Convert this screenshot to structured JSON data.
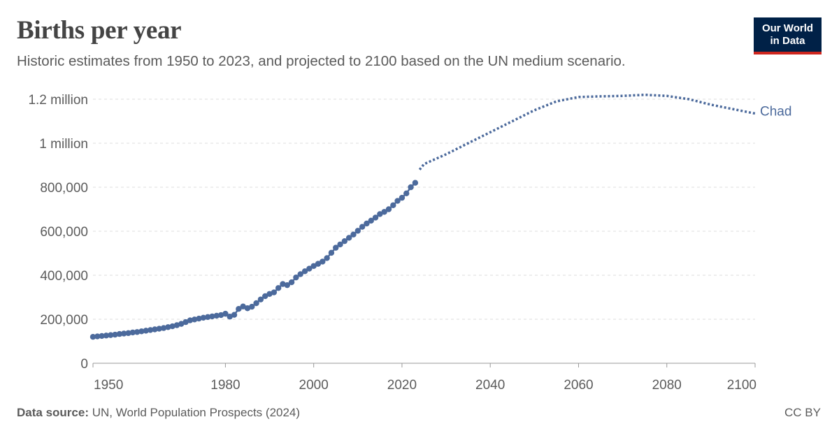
{
  "header": {
    "title": "Births per year",
    "subtitle": "Historic estimates from 1950 to 2023, and projected to 2100 based on the UN medium scenario."
  },
  "logo": {
    "line1": "Our World",
    "line2": "in Data"
  },
  "footer": {
    "source_label": "Data source:",
    "source_text": "UN, World Population Prospects (2024)",
    "license": "CC BY"
  },
  "colors": {
    "series": "#4c6a9c",
    "grid": "#dddddd",
    "axis": "#999999",
    "logo_bg": "#002147",
    "logo_accent": "#ce261e"
  },
  "chart_data": {
    "type": "line",
    "title": "Births per year",
    "xlabel": "",
    "ylabel": "",
    "xlim": [
      1950,
      2100
    ],
    "ylim": [
      0,
      1200000
    ],
    "x_ticks": [
      {
        "value": 1950,
        "label": "1950"
      },
      {
        "value": 1980,
        "label": "1980"
      },
      {
        "value": 2000,
        "label": "2000"
      },
      {
        "value": 2020,
        "label": "2020"
      },
      {
        "value": 2040,
        "label": "2040"
      },
      {
        "value": 2060,
        "label": "2060"
      },
      {
        "value": 2080,
        "label": "2080"
      },
      {
        "value": 2100,
        "label": "2100"
      }
    ],
    "y_ticks": [
      {
        "value": 0,
        "label": "0"
      },
      {
        "value": 200000,
        "label": "200,000"
      },
      {
        "value": 400000,
        "label": "400,000"
      },
      {
        "value": 600000,
        "label": "600,000"
      },
      {
        "value": 800000,
        "label": "800,000"
      },
      {
        "value": 1000000,
        "label": "1 million"
      },
      {
        "value": 1200000,
        "label": "1.2 million"
      }
    ],
    "grid": true,
    "legend": "inline-right",
    "series": [
      {
        "name": "Chad",
        "style": "solid-markers",
        "x": [
          1950,
          1951,
          1952,
          1953,
          1954,
          1955,
          1956,
          1957,
          1958,
          1959,
          1960,
          1961,
          1962,
          1963,
          1964,
          1965,
          1966,
          1967,
          1968,
          1969,
          1970,
          1971,
          1972,
          1973,
          1974,
          1975,
          1976,
          1977,
          1978,
          1979,
          1980,
          1981,
          1982,
          1983,
          1984,
          1985,
          1986,
          1987,
          1988,
          1989,
          1990,
          1991,
          1992,
          1993,
          1994,
          1995,
          1996,
          1997,
          1998,
          1999,
          2000,
          2001,
          2002,
          2003,
          2004,
          2005,
          2006,
          2007,
          2008,
          2009,
          2010,
          2011,
          2012,
          2013,
          2014,
          2015,
          2016,
          2017,
          2018,
          2019,
          2020,
          2021,
          2022,
          2023
        ],
        "values": [
          120000,
          122000,
          124000,
          126000,
          128000,
          130000,
          133000,
          135000,
          137000,
          140000,
          142000,
          145000,
          148000,
          151000,
          154000,
          157000,
          160000,
          164000,
          168000,
          173000,
          179000,
          187000,
          195000,
          199000,
          203000,
          207000,
          210000,
          213000,
          216000,
          219000,
          225000,
          212000,
          220000,
          247000,
          258000,
          250000,
          257000,
          273000,
          290000,
          305000,
          315000,
          322000,
          342000,
          360000,
          355000,
          368000,
          390000,
          405000,
          418000,
          430000,
          442000,
          452000,
          462000,
          478000,
          502000,
          525000,
          540000,
          555000,
          570000,
          585000,
          602000,
          620000,
          635000,
          648000,
          662000,
          678000,
          688000,
          700000,
          718000,
          738000,
          752000,
          772000,
          800000,
          820000
        ]
      },
      {
        "name": "Chad (projection)",
        "style": "dotted",
        "x": [
          2024,
          2025,
          2030,
          2035,
          2040,
          2045,
          2050,
          2055,
          2060,
          2065,
          2070,
          2075,
          2080,
          2085,
          2090,
          2095,
          2100
        ],
        "values": [
          880000,
          905000,
          950000,
          1000000,
          1050000,
          1100000,
          1150000,
          1190000,
          1210000,
          1213000,
          1215000,
          1220000,
          1215000,
          1200000,
          1175000,
          1155000,
          1135000
        ]
      }
    ],
    "series_label": "Chad"
  }
}
